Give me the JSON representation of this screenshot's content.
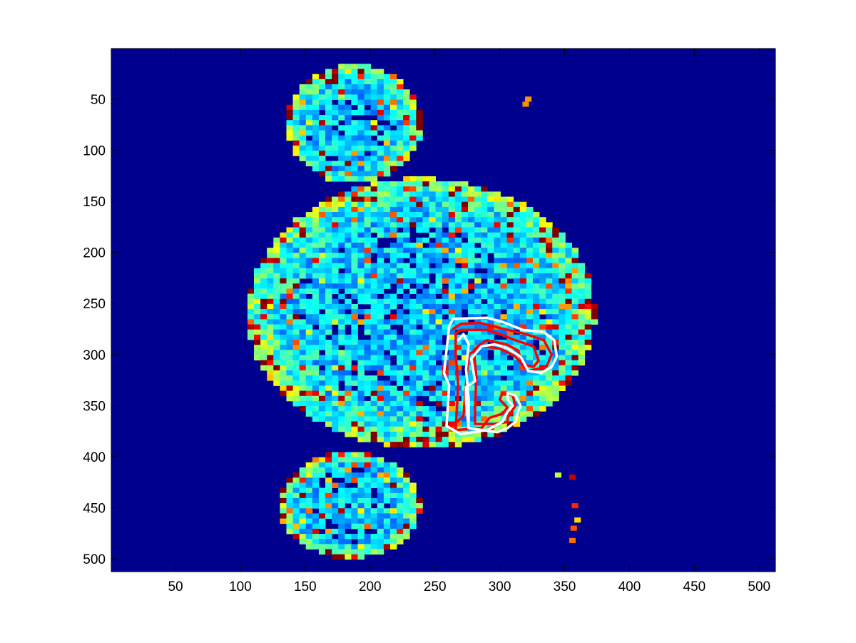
{
  "chart_data": {
    "type": "heatmap",
    "title": "",
    "xlabel": "",
    "ylabel": "",
    "colormap": "jet",
    "background_color": "#00008f",
    "xlim": [
      1,
      512
    ],
    "ylim": [
      512,
      1
    ],
    "y_axis_reversed": true,
    "grid": false,
    "legend": "none",
    "x_ticks": [
      50,
      100,
      150,
      200,
      250,
      300,
      350,
      400,
      450,
      500
    ],
    "y_ticks": [
      50,
      100,
      150,
      200,
      250,
      300,
      350,
      400,
      450,
      500
    ],
    "overlays": [
      {
        "color": "#ff0000",
        "style": "solid",
        "contours": [
          {
            "points": [
              [
                266,
                374
              ],
              [
                268,
                330
              ],
              [
                266,
                300
              ],
              [
                266,
                279
              ],
              [
                270,
                276
              ],
              [
                290,
                276
              ],
              [
                300,
                280
              ],
              [
                312,
                286
              ],
              [
                326,
                292
              ],
              [
                330,
                306
              ],
              [
                326,
                312
              ],
              [
                318,
                310
              ],
              [
                314,
                296
              ],
              [
                305,
                290
              ],
              [
                290,
                286
              ],
              [
                283,
                292
              ],
              [
                280,
                296
              ],
              [
                282,
                322
              ],
              [
                281,
                352
              ],
              [
                281,
                368
              ],
              [
                296,
                368
              ],
              [
                306,
                366
              ],
              [
                306,
                362
              ],
              [
                312,
                350
              ],
              [
                310,
                340
              ],
              [
                302,
                338
              ],
              [
                300,
                344
              ],
              [
                306,
                352
              ],
              [
                302,
                358
              ],
              [
                292,
                362
              ],
              [
                286,
                372
              ],
              [
                266,
                374
              ]
            ]
          },
          {
            "points": [
              [
                264,
                275
              ],
              [
                270,
                270
              ],
              [
                285,
                269
              ],
              [
                300,
                274
              ],
              [
                320,
                280
              ],
              [
                334,
                286
              ],
              [
                340,
                300
              ],
              [
                336,
                312
              ],
              [
                322,
                316
              ],
              [
                312,
                302
              ],
              [
                300,
                294
              ],
              [
                286,
                292
              ],
              [
                276,
                300
              ],
              [
                274,
                330
              ],
              [
                272,
                360
              ],
              [
                262,
                372
              ]
            ]
          }
        ]
      },
      {
        "color": "#ffffff",
        "style": "solid",
        "contours": [
          {
            "points": [
              [
                259,
                370
              ],
              [
                261,
                330
              ],
              [
                257,
                318
              ],
              [
                259,
                296
              ],
              [
                261,
                272
              ],
              [
                264,
                265
              ],
              [
                290,
                264
              ],
              [
                302,
                268
              ],
              [
                318,
                276
              ],
              [
                334,
                278
              ],
              [
                342,
                286
              ],
              [
                344,
                302
              ],
              [
                340,
                312
              ],
              [
                332,
                318
              ],
              [
                322,
                316
              ],
              [
                316,
                302
              ],
              [
                306,
                294
              ],
              [
                296,
                290
              ],
              [
                286,
                292
              ],
              [
                278,
                304
              ],
              [
                281,
                326
              ],
              [
                274,
                332
              ],
              [
                274,
                346
              ],
              [
                276,
                372
              ],
              [
                298,
                376
              ],
              [
                306,
                372
              ],
              [
                312,
                366
              ],
              [
                314,
                356
              ],
              [
                316,
                350
              ],
              [
                312,
                340
              ],
              [
                306,
                338
              ],
              [
                306,
                344
              ],
              [
                310,
                350
              ],
              [
                306,
                356
              ],
              [
                302,
                366
              ],
              [
                290,
                374
              ],
              [
                270,
                378
              ],
              [
                259,
                370
              ]
            ]
          },
          {
            "points": [
              [
                268,
                286
              ],
              [
                272,
                280
              ],
              [
                276,
                290
              ],
              [
                274,
                314
              ],
              [
                276,
                344
              ],
              [
                276,
                366
              ]
            ]
          }
        ]
      }
    ]
  }
}
